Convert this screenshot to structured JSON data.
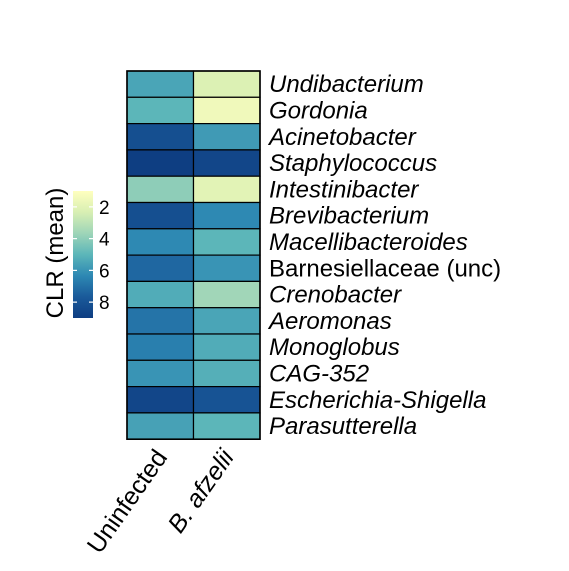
{
  "chart_data": {
    "type": "heatmap",
    "columns": [
      {
        "label": "Uninfected",
        "italic": false
      },
      {
        "label": "B. afzelii",
        "italic": true
      }
    ],
    "rows": [
      {
        "label": "Undibacterium",
        "italic": true,
        "color": "#000000"
      },
      {
        "label": "Gordonia",
        "italic": true,
        "color": "#000000"
      },
      {
        "label": "Acinetobacter",
        "italic": true,
        "color": "#000000"
      },
      {
        "label": "Staphylococcus",
        "italic": true,
        "color": "#000000"
      },
      {
        "label": "Intestinibacter",
        "italic": true,
        "color": "#000000"
      },
      {
        "label": "Brevibacterium",
        "italic": true,
        "color": "#000000"
      },
      {
        "label": "Macellibacteroides",
        "italic": true,
        "color": "#000000"
      },
      {
        "label": "Barnesiellaceae (unc)",
        "italic": false,
        "color": "#000000"
      },
      {
        "label": "Crenobacter",
        "italic": true,
        "color": "#000000"
      },
      {
        "label": "Aeromonas",
        "italic": true,
        "color": "#000000"
      },
      {
        "label": "Monoglobus",
        "italic": true,
        "color": "#000000"
      },
      {
        "label": "CAG-352",
        "italic": true,
        "color": "#000000"
      },
      {
        "label": "Escherichia-Shigella",
        "italic": true,
        "color": "#8B2B8E"
      },
      {
        "label": "Parasutterella",
        "italic": true,
        "color": "#000000"
      }
    ],
    "values": [
      [
        5.5,
        2.2
      ],
      [
        5.0,
        1.5
      ],
      [
        8.2,
        5.8
      ],
      [
        9.0,
        8.6
      ],
      [
        4.0,
        2.0
      ],
      [
        8.2,
        6.3
      ],
      [
        6.3,
        5.0
      ],
      [
        7.3,
        6.0
      ],
      [
        5.3,
        3.6
      ],
      [
        6.9,
        5.5
      ],
      [
        6.6,
        5.3
      ],
      [
        6.0,
        5.2
      ],
      [
        8.6,
        8.0
      ],
      [
        5.6,
        5.0
      ]
    ],
    "colorbar": {
      "title": "CLR (mean)",
      "ticks": [
        2,
        4,
        6,
        8
      ],
      "range": [
        1,
        9
      ],
      "reversed": true,
      "palette": [
        "#FFFFBF",
        "#D8EFB3",
        "#9ED5B8",
        "#5CB6B9",
        "#2D88B3",
        "#1A5A9A",
        "#0E3E82"
      ]
    },
    "grid_color": "#000000",
    "legend_position": "left"
  }
}
